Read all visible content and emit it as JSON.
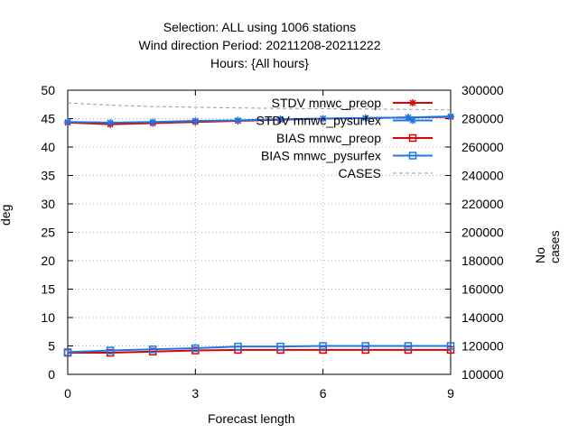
{
  "chart_data": {
    "type": "line",
    "title_lines": [
      "Selection: ALL using  1006 stations",
      "Wind direction   Period: 20211208-20211222",
      "Hours: {All hours}"
    ],
    "xlabel": "Forecast length",
    "ylabel": "deg",
    "y2label": "No cases",
    "x": [
      0,
      1,
      2,
      3,
      4,
      5,
      6,
      7,
      8,
      9
    ],
    "xlim": [
      0,
      9
    ],
    "ylim": [
      0,
      50
    ],
    "y2lim": [
      100000,
      300000
    ],
    "xticks": [
      "0",
      "3",
      "6",
      "9"
    ],
    "yticks": [
      "0",
      "5",
      "10",
      "15",
      "20",
      "25",
      "30",
      "35",
      "40",
      "45",
      "50"
    ],
    "y2ticks": [
      "100000",
      "120000",
      "140000",
      "160000",
      "180000",
      "200000",
      "220000",
      "240000",
      "260000",
      "280000",
      "300000"
    ],
    "grid": true,
    "legend_position": "top-right",
    "series": [
      {
        "name": "STDV mnwc_preop",
        "axis": "y",
        "color": "#e00000",
        "marker": "asterisk",
        "dash": "none",
        "values": [
          44.3,
          44.0,
          44.2,
          44.4,
          44.6,
          44.8,
          45.0,
          45.1,
          45.2,
          45.3
        ]
      },
      {
        "name": "STDV mnwc_pysurfex",
        "axis": "y",
        "color": "#1a78e6",
        "marker": "asterisk",
        "dash": "none",
        "values": [
          44.4,
          44.3,
          44.4,
          44.6,
          44.7,
          44.9,
          45.0,
          45.1,
          45.2,
          45.4
        ]
      },
      {
        "name": "BIAS mnwc_preop",
        "axis": "y",
        "color": "#e00000",
        "marker": "square",
        "dash": "none",
        "values": [
          3.8,
          3.8,
          4.0,
          4.2,
          4.3,
          4.3,
          4.3,
          4.3,
          4.3,
          4.3
        ]
      },
      {
        "name": "BIAS mnwc_pysurfex",
        "axis": "y",
        "color": "#1a78e6",
        "marker": "square",
        "dash": "none",
        "values": [
          3.9,
          4.2,
          4.4,
          4.6,
          4.9,
          4.9,
          5.0,
          5.0,
          5.0,
          5.0
        ]
      },
      {
        "name": "CASES",
        "axis": "y2",
        "color": "#9a9a9a",
        "marker": "none",
        "dash": "4,3",
        "values": [
          291000,
          289500,
          288500,
          288000,
          287500,
          287200,
          287000,
          286800,
          286500,
          286200
        ]
      }
    ]
  }
}
